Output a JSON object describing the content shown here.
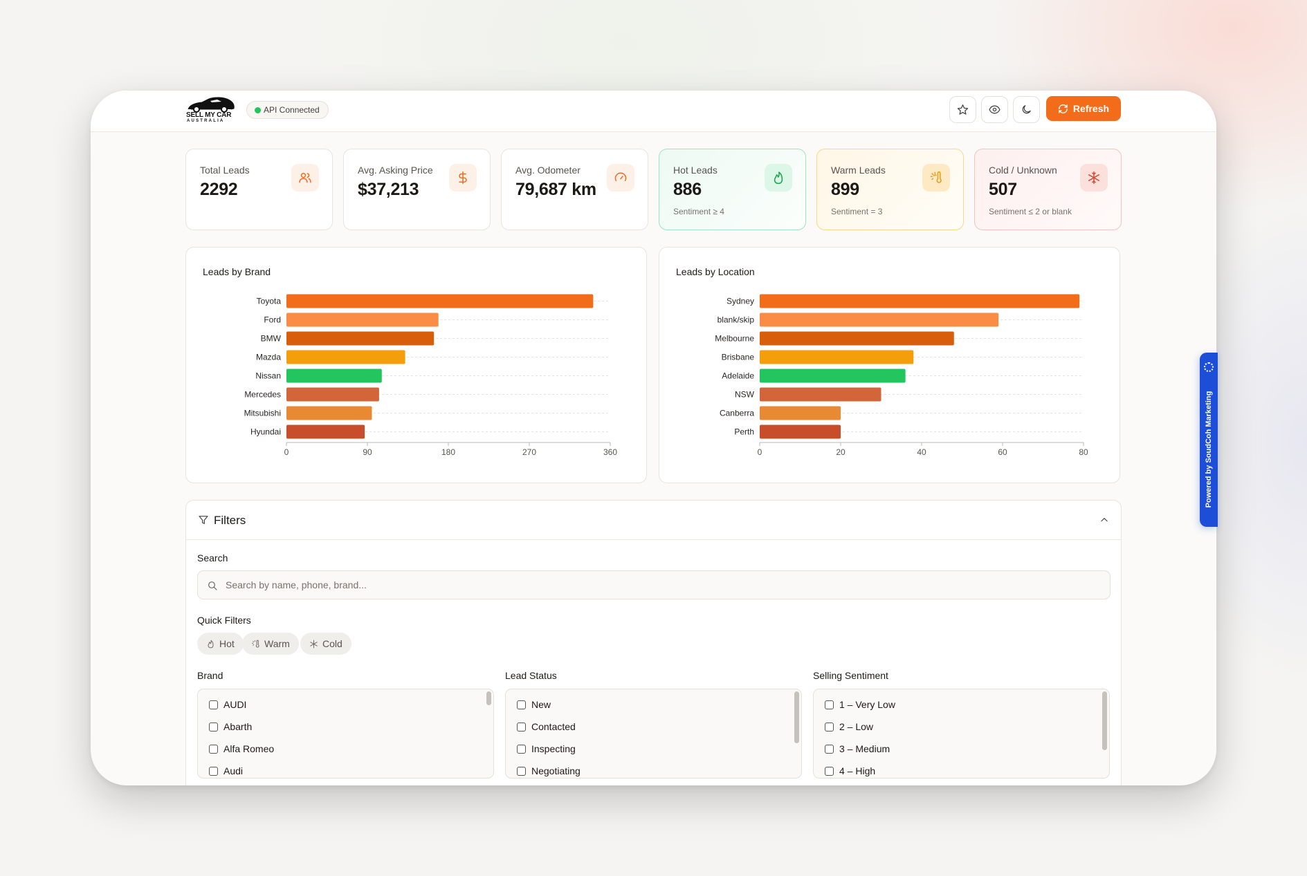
{
  "brand": {
    "line1": "SELL MY CAR",
    "line2": "AUSTRALIA",
    "logo_icon": "car-silhouette-icon"
  },
  "header": {
    "api_status": "API Connected",
    "api_status_color": "#22c55e",
    "buttons": {
      "favorite_icon": "star-icon",
      "visibility_icon": "eye-icon",
      "theme_icon": "moon-icon",
      "refresh_label": "Refresh",
      "refresh_icon": "refresh-icon"
    },
    "accent": "#f26c1a"
  },
  "stats": [
    {
      "label": "Total Leads",
      "value": "2292",
      "sub": "",
      "icon": "users-icon"
    },
    {
      "label": "Avg. Asking Price",
      "value": "$37,213",
      "sub": "",
      "icon": "dollar-icon"
    },
    {
      "label": "Avg. Odometer",
      "value": "79,687 km",
      "sub": "",
      "icon": "gauge-icon"
    },
    {
      "label": "Hot Leads",
      "value": "886",
      "sub": "Sentiment ≥ 4",
      "icon": "flame-icon"
    },
    {
      "label": "Warm Leads",
      "value": "899",
      "sub": "Sentiment = 3",
      "icon": "sun-thermometer-icon"
    },
    {
      "label": "Cold / Unknown",
      "value": "507",
      "sub": "Sentiment ≤ 2 or blank",
      "icon": "snowflake-icon"
    }
  ],
  "chart_data": [
    {
      "type": "bar",
      "orientation": "horizontal",
      "title": "Leads by Brand",
      "categories": [
        "Toyota",
        "Ford",
        "BMW",
        "Mazda",
        "Nissan",
        "Mercedes",
        "Mitsubishi",
        "Hyundai"
      ],
      "values": [
        341,
        169,
        164,
        132,
        106,
        103,
        95,
        87
      ],
      "xticks": [
        "0",
        "90",
        "180",
        "270",
        "360"
      ],
      "xlim": [
        0,
        360
      ],
      "grid": true,
      "colors": [
        "#f26c1a",
        "#fb8c45",
        "#d95e0c",
        "#f59e0b",
        "#22c55e",
        "#d2653a",
        "#e88a33",
        "#c84d2a"
      ]
    },
    {
      "type": "bar",
      "orientation": "horizontal",
      "title": "Leads by Location",
      "categories": [
        "Sydney",
        "blank/skip",
        "Melbourne",
        "Brisbane",
        "Adelaide",
        "NSW",
        "Canberra",
        "Perth"
      ],
      "values": [
        79,
        59,
        48,
        38,
        36,
        30,
        20,
        20
      ],
      "xticks": [
        "0",
        "20",
        "40",
        "60",
        "80"
      ],
      "xlim": [
        0,
        80
      ],
      "grid": true,
      "colors": [
        "#f26c1a",
        "#fb8c45",
        "#d95e0c",
        "#f59e0b",
        "#22c55e",
        "#d2653a",
        "#e88a33",
        "#c84d2a"
      ]
    }
  ],
  "filters": {
    "title": "Filters",
    "search_label": "Search",
    "search_placeholder": "Search by name, phone, brand...",
    "search_value": "",
    "quick_label": "Quick Filters",
    "quick": [
      {
        "label": "Hot",
        "icon": "flame-icon"
      },
      {
        "label": "Warm",
        "icon": "sun-thermometer-icon"
      },
      {
        "label": "Cold",
        "icon": "snowflake-icon"
      }
    ],
    "brand_label": "Brand",
    "brand_options": [
      "AUDI",
      "Abarth",
      "Alfa Romeo",
      "Audi"
    ],
    "status_label": "Lead Status",
    "status_options": [
      "New",
      "Contacted",
      "Inspecting",
      "Negotiating"
    ],
    "sentiment_label": "Selling Sentiment",
    "sentiment_options": [
      "1 – Very Low",
      "2 – Low",
      "3 – Medium",
      "4 – High"
    ]
  },
  "powered_by": "Powered by SoudCoh Marketing"
}
